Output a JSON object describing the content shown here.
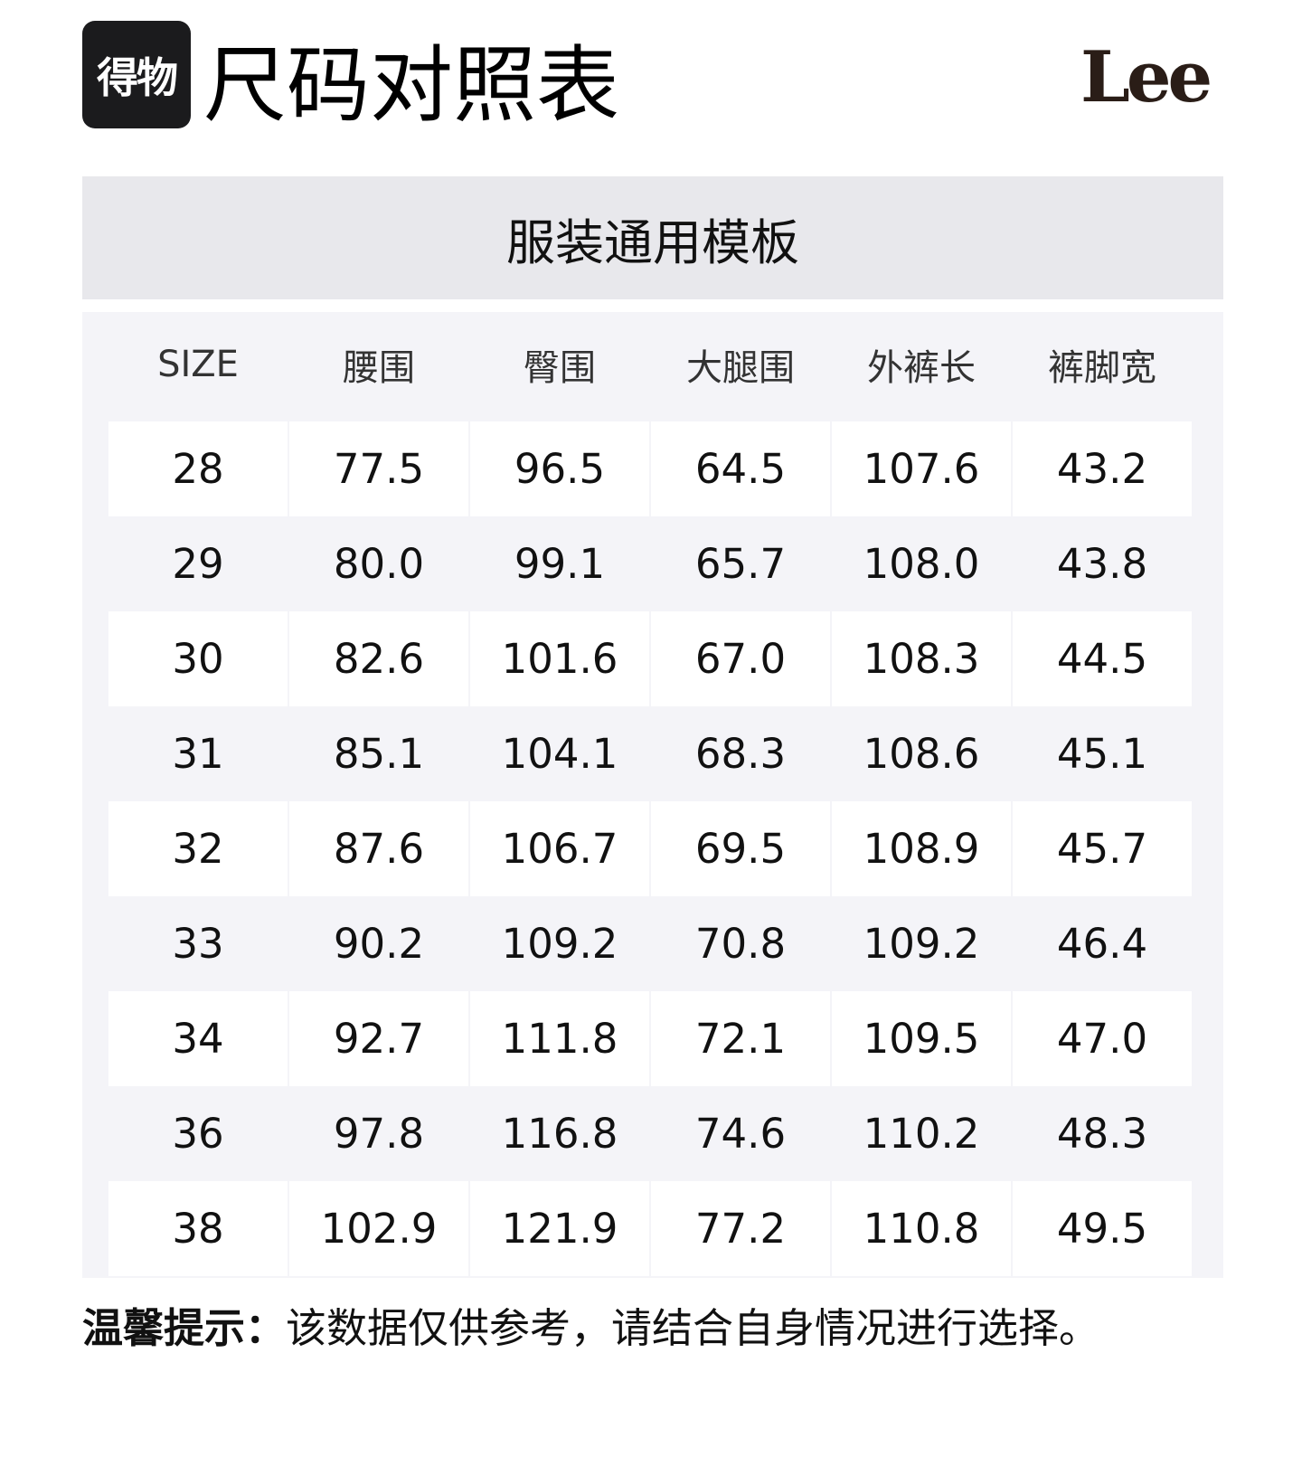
{
  "header": {
    "app_logo_text": "得物",
    "title": "尺码对照表",
    "brand_logo_text": "Lee"
  },
  "band_title": "服装通用模板",
  "table": {
    "columns": [
      "SIZE",
      "腰围",
      "臀围",
      "大腿围",
      "外裤长",
      "裤脚宽"
    ],
    "rows": [
      [
        "28",
        "77.5",
        "96.5",
        "64.5",
        "107.6",
        "43.2"
      ],
      [
        "29",
        "80.0",
        "99.1",
        "65.7",
        "108.0",
        "43.8"
      ],
      [
        "30",
        "82.6",
        "101.6",
        "67.0",
        "108.3",
        "44.5"
      ],
      [
        "31",
        "85.1",
        "104.1",
        "68.3",
        "108.6",
        "45.1"
      ],
      [
        "32",
        "87.6",
        "106.7",
        "69.5",
        "108.9",
        "45.7"
      ],
      [
        "33",
        "90.2",
        "109.2",
        "70.8",
        "109.2",
        "46.4"
      ],
      [
        "34",
        "92.7",
        "111.8",
        "72.1",
        "109.5",
        "47.0"
      ],
      [
        "36",
        "97.8",
        "116.8",
        "74.6",
        "110.2",
        "48.3"
      ],
      [
        "38",
        "102.9",
        "121.9",
        "77.2",
        "110.8",
        "49.5"
      ]
    ]
  },
  "footer": {
    "label": "温馨提示：",
    "text": "该数据仅供参考，请结合自身情况进行选择。"
  }
}
